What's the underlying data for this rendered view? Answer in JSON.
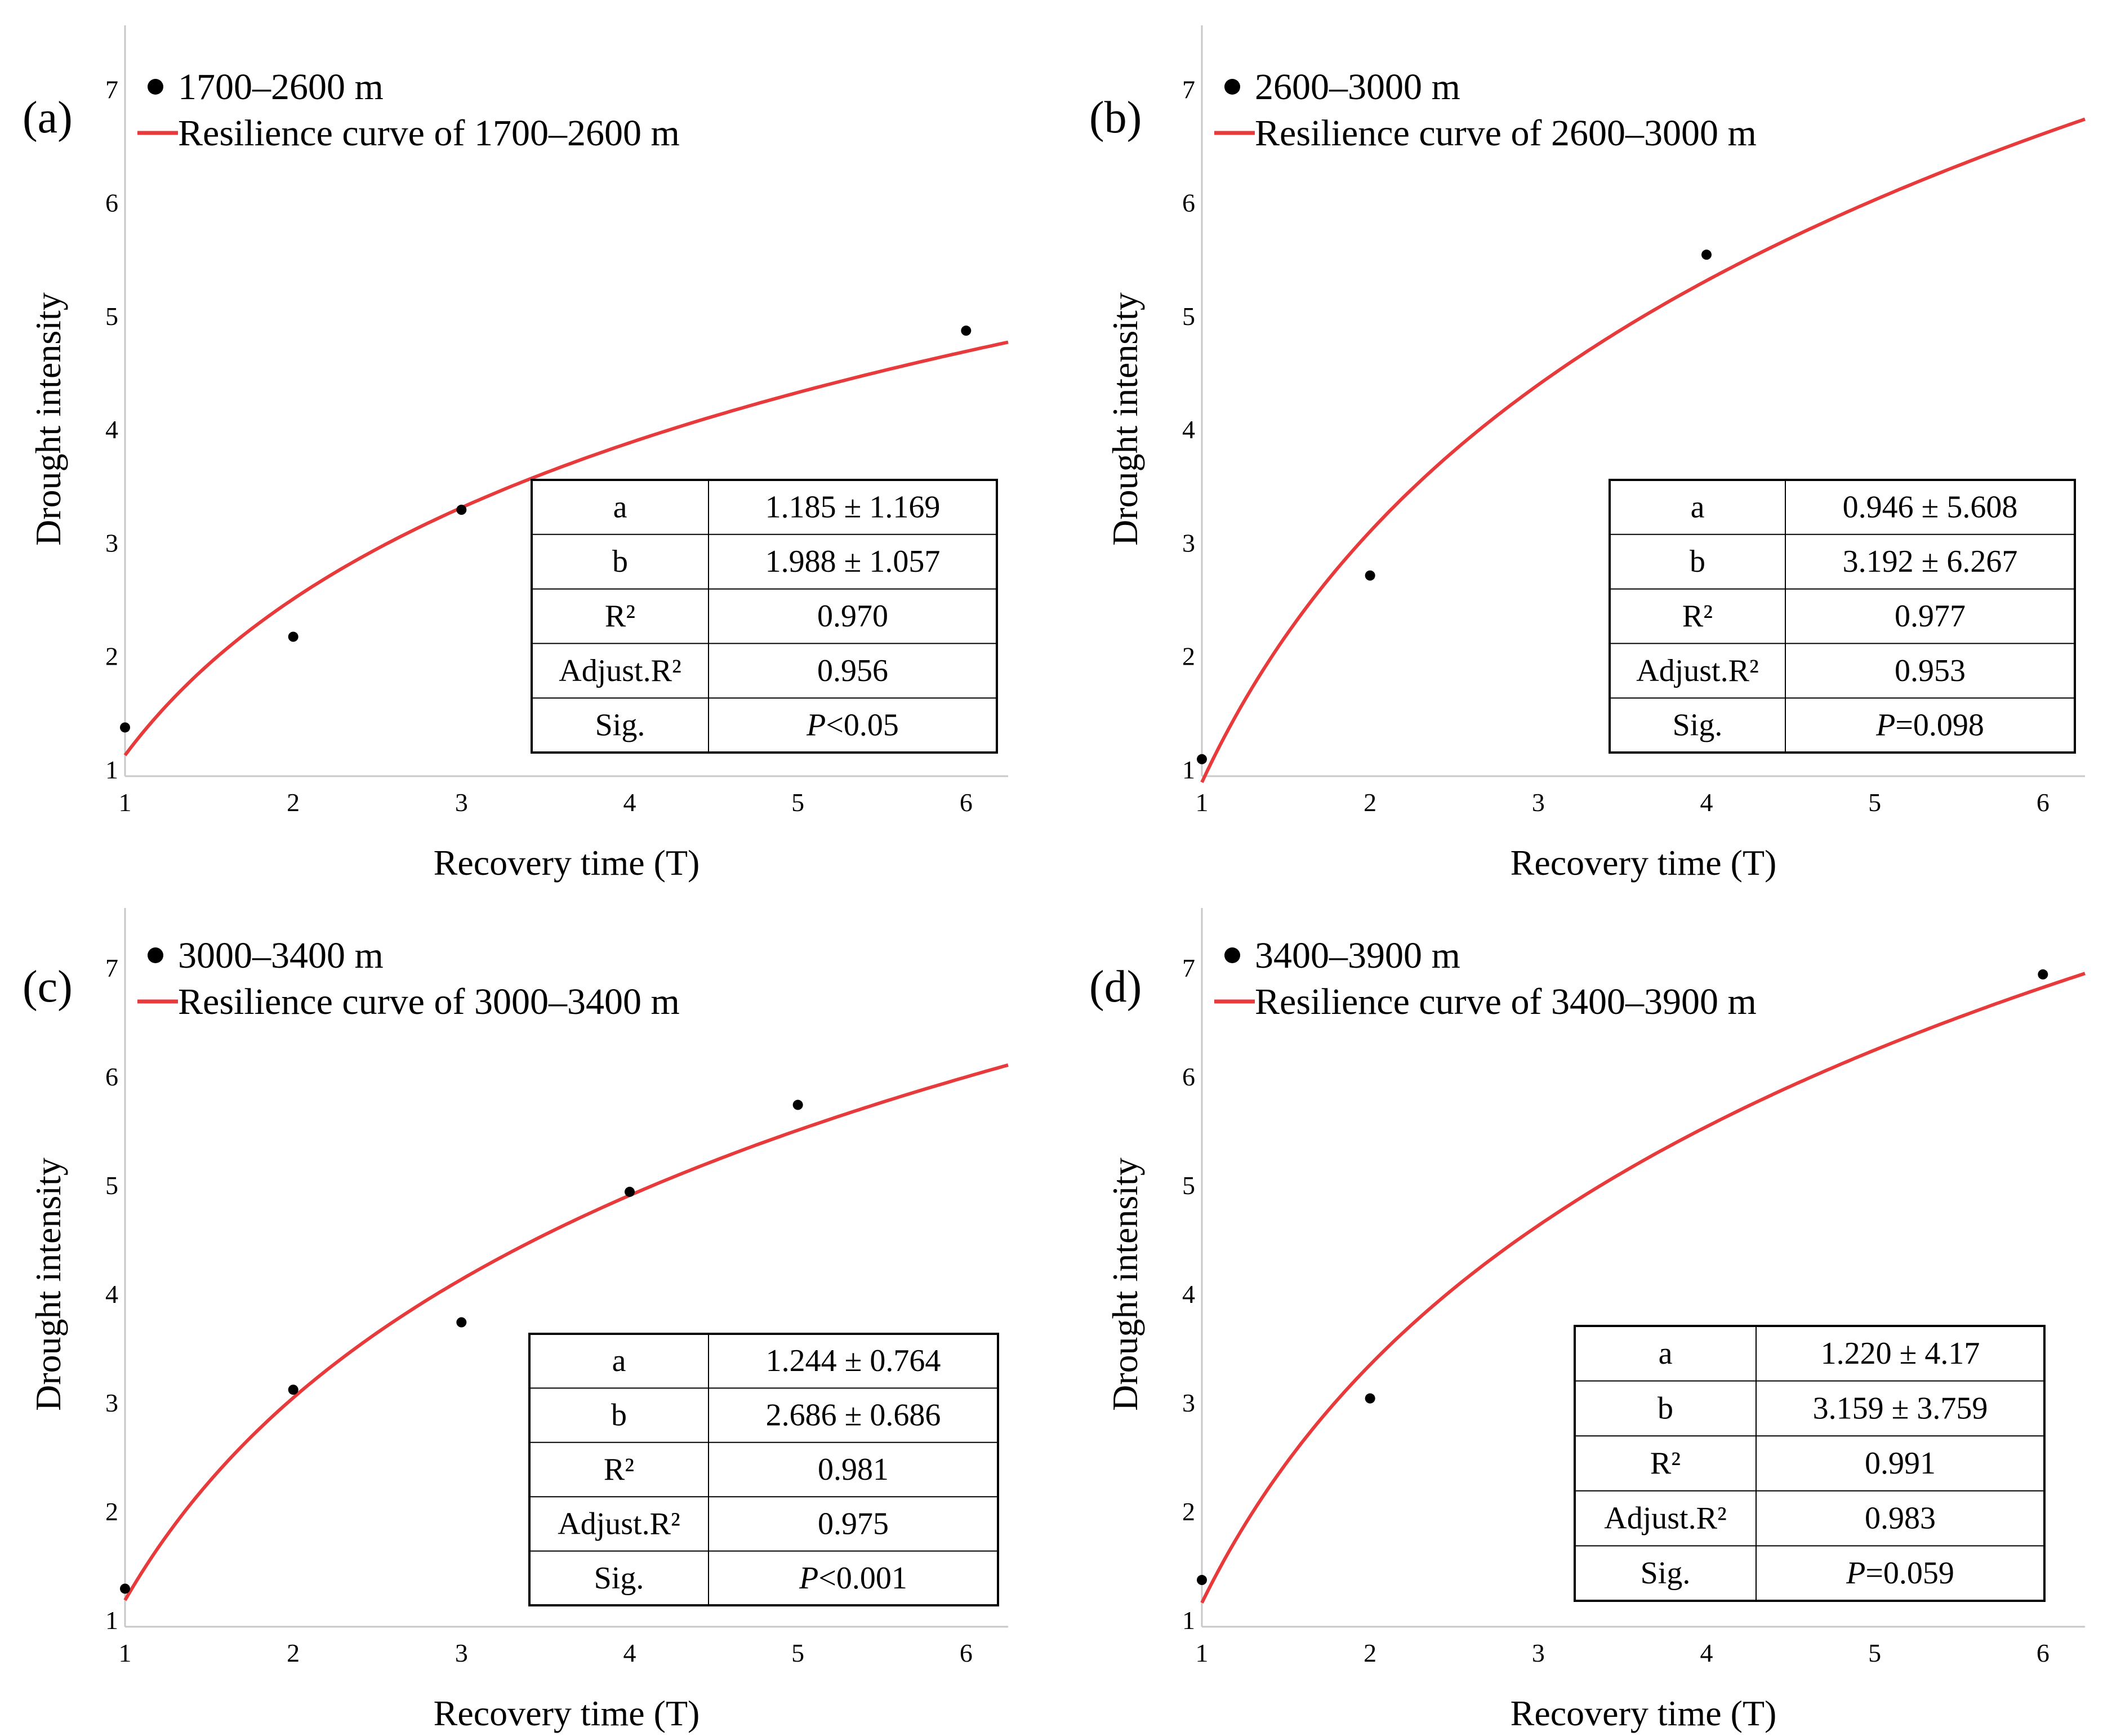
{
  "chart_data": [
    {
      "type": "scatter",
      "panel": "(a)",
      "legend": {
        "points": "1700–2600 m",
        "curve": "Resilience curve of 1700–2600 m"
      },
      "xlabel": "Recovery time (T)",
      "ylabel": "Drought intensity",
      "xlim": [
        1,
        6.25
      ],
      "ylim": [
        1,
        7.3
      ],
      "xticks": [
        "1",
        "2",
        "3",
        "4",
        "5",
        "6"
      ],
      "yticks": [
        "1",
        "2",
        "3",
        "4",
        "5",
        "6",
        "7"
      ],
      "points": {
        "x": [
          1,
          2,
          3,
          6
        ],
        "y": [
          1.43,
          2.23,
          3.35,
          4.93
        ]
      },
      "curve": {
        "a": 1.185,
        "b": 1.988,
        "x_end": 6.25,
        "color": "#e8393b"
      },
      "stats": [
        {
          "label": "a",
          "value": "1.185 ± 1.169"
        },
        {
          "label": "b",
          "value": "1.988 ± 1.057"
        },
        {
          "label": "R²",
          "value": "0.970"
        },
        {
          "label": "Adjust.R²",
          "value": "0.956"
        },
        {
          "label": "Sig.",
          "value": "P<0.05"
        }
      ]
    },
    {
      "type": "scatter",
      "panel": "(b)",
      "legend": {
        "points": "2600–3000 m",
        "curve": "Resilience curve of 2600–3000 m"
      },
      "xlabel": "Recovery time (T)",
      "ylabel": "Drought intensity",
      "xlim": [
        1,
        6.25
      ],
      "ylim": [
        1,
        7.3
      ],
      "xticks": [
        "1",
        "2",
        "3",
        "4",
        "5",
        "6"
      ],
      "yticks": [
        "1",
        "2",
        "3",
        "4",
        "5",
        "6",
        "7"
      ],
      "points": {
        "x": [
          1,
          2,
          4
        ],
        "y": [
          1.15,
          2.77,
          5.6
        ]
      },
      "curve": {
        "a": 0.946,
        "b": 3.192,
        "x_end": 6.25,
        "color": "#e8393b"
      },
      "stats": [
        {
          "label": "a",
          "value": "0.946 ± 5.608"
        },
        {
          "label": "b",
          "value": "3.192 ± 6.267"
        },
        {
          "label": "R²",
          "value": "0.977"
        },
        {
          "label": "Adjust.R²",
          "value": "0.953"
        },
        {
          "label": "Sig.",
          "value": "P=0.098"
        }
      ]
    },
    {
      "type": "scatter",
      "panel": "(c)",
      "legend": {
        "points": "3000–3400 m",
        "curve": "Resilience curve of 3000–3400 m"
      },
      "xlabel": "Recovery time (T)",
      "ylabel": "Drought intensity",
      "xlim": [
        1,
        6.25
      ],
      "ylim": [
        1,
        7.3
      ],
      "xticks": [
        "1",
        "2",
        "3",
        "4",
        "5",
        "6"
      ],
      "yticks": [
        "1",
        "2",
        "3",
        "4",
        "5",
        "6",
        "7"
      ],
      "points": {
        "x": [
          1,
          2,
          3,
          4,
          5
        ],
        "y": [
          1.35,
          3.18,
          3.8,
          5.0,
          5.8
        ]
      },
      "curve": {
        "a": 1.244,
        "b": 2.686,
        "x_end": 6.25,
        "color": "#e8393b"
      },
      "stats": [
        {
          "label": "a",
          "value": "1.244 ± 0.764"
        },
        {
          "label": "b",
          "value": "2.686 ± 0.686"
        },
        {
          "label": "R²",
          "value": "0.981"
        },
        {
          "label": "Adjust.R²",
          "value": "0.975"
        },
        {
          "label": "Sig.",
          "value": "P<0.001"
        }
      ]
    },
    {
      "type": "scatter",
      "panel": "(d)",
      "legend": {
        "points": "3400–3900 m",
        "curve": "Resilience curve of 3400–3900 m"
      },
      "xlabel": "Recovery time (T)",
      "ylabel": "Drought intensity",
      "xlim": [
        1,
        6.25
      ],
      "ylim": [
        1,
        7.3
      ],
      "xticks": [
        "1",
        "2",
        "3",
        "4",
        "5",
        "6"
      ],
      "yticks": [
        "1",
        "2",
        "3",
        "4",
        "5",
        "6",
        "7"
      ],
      "points": {
        "x": [
          1,
          2,
          6
        ],
        "y": [
          1.43,
          3.1,
          7.0
        ]
      },
      "curve": {
        "a": 1.22,
        "b": 3.159,
        "x_end": 6.25,
        "color": "#e8393b"
      },
      "stats": [
        {
          "label": "a",
          "value": "1.220 ± 4.17"
        },
        {
          "label": "b",
          "value": "3.159 ± 3.759"
        },
        {
          "label": "R²",
          "value": "0.991"
        },
        {
          "label": "Adjust.R²",
          "value": "0.983"
        },
        {
          "label": "Sig.",
          "value": "P=0.059"
        }
      ]
    }
  ]
}
